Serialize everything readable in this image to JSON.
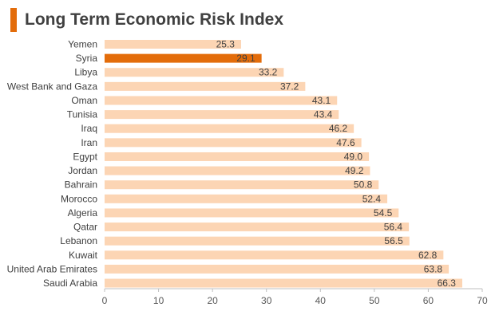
{
  "header": {
    "title": "Long Term Economic Risk Index",
    "accent_color": "#e36c0a"
  },
  "colors": {
    "bar": "#fcd5b4",
    "highlight": "#e36c0a",
    "axis": "#bfbfbf"
  },
  "chart_data": {
    "type": "bar",
    "orientation": "horizontal",
    "title": "Long Term Economic Risk Index",
    "xlabel": "",
    "ylabel": "",
    "xlim": [
      0,
      70
    ],
    "xticks": [
      0,
      10,
      20,
      30,
      40,
      50,
      60,
      70
    ],
    "grid": false,
    "categories": [
      "Yemen",
      "Syria",
      "Libya",
      "West Bank and Gaza",
      "Oman",
      "Tunisia",
      "Iraq",
      "Iran",
      "Egypt",
      "Jordan",
      "Bahrain",
      "Morocco",
      "Algeria",
      "Qatar",
      "Lebanon",
      "Kuwait",
      "United Arab Emirates",
      "Saudi Arabia"
    ],
    "values": [
      25.3,
      29.1,
      33.2,
      37.2,
      43.1,
      43.4,
      46.2,
      47.6,
      49.0,
      49.2,
      50.8,
      52.4,
      54.5,
      56.4,
      56.5,
      62.8,
      63.8,
      66.3
    ],
    "value_labels": [
      "25.3",
      "29.1",
      "33.2",
      "37.2",
      "43.1",
      "43.4",
      "46.2",
      "47.6",
      "49.0",
      "49.2",
      "50.8",
      "52.4",
      "54.5",
      "56.4",
      "56.5",
      "62.8",
      "63.8",
      "66.3"
    ],
    "highlight_category": "Syria"
  }
}
